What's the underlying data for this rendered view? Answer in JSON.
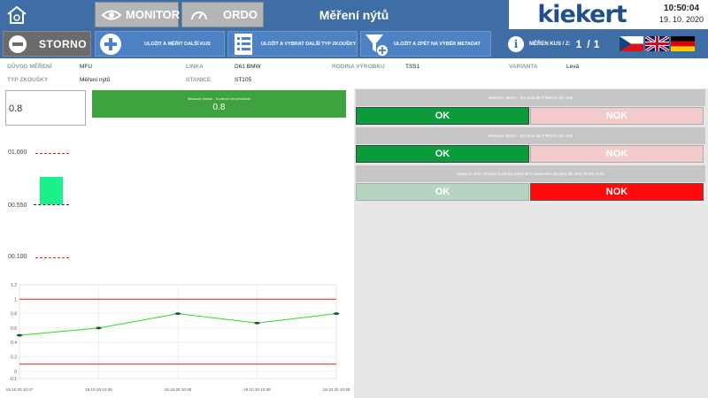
{
  "header": {
    "title": "Měření nýtů",
    "monitor_label": "MONITOR",
    "ordo_label": "ORDO",
    "brand": "kiekert",
    "time": "10:50:04",
    "date": "19. 10. 2020"
  },
  "toolbar": {
    "storno_label": "STORNO",
    "save_next_label": "ULOŽIT A MĚŘIT DALŠÍ KUS",
    "save_select_label": "ULOŽIT A VYBRAT DALŠÍ TYP ZKOUŠKY",
    "save_back_label": "ULOŽIT A ZPĚT NA VÝBĚR METADAT",
    "count_label": "MĚŘEN KUS / Z:",
    "count_current": "1",
    "count_separator": "/",
    "count_total": "1"
  },
  "meta": {
    "reason_key": "DŮVOD MĚŘENÍ",
    "reason_val": "MFU",
    "test_type_key": "TYP ZKOUŠKY",
    "test_type_val": "Měření nýtů",
    "line_key": "LINKA",
    "line_val": "D61 BMW",
    "station_key": "STANICE",
    "station_val": "ST105",
    "family_key": "RODINA VÝROBKU",
    "family_val": "TSS1",
    "variant_key": "VARIANTA",
    "variant_val": "Levá"
  },
  "measurement": {
    "input_value": "0.8",
    "result_caption": "Measure station - Kontrola nerozhodnutí",
    "result_value": "0.8"
  },
  "scale": {
    "upper": "01.000",
    "nominal": "00.550",
    "lower": "00.100"
  },
  "checks": [
    {
      "caption": "Measure station - Kontrola dle FRM-GL-QA-156",
      "ok_label": "OK",
      "nok_label": "NOK"
    },
    {
      "caption": "Measure station - Kontrola dle FRM-GL-QA-156",
      "ok_label": "OK",
      "nok_label": "NOK"
    },
    {
      "caption": "Measure 3D0: Vizuální kontrola správného nastavení nýtování dle 3D0, FLRG, 8.03",
      "ok_label": "OK",
      "nok_label": "NOK"
    }
  ],
  "colors": {
    "header_bg": "#3f6ea7",
    "ok_green": "#0c9b3c",
    "nok_red": "#ff0b0b",
    "bar_green": "#1cf08a"
  },
  "chart_data": {
    "type": "line",
    "x": [
      "19.10.20 10:47",
      "19.10.20 10:48",
      "19.10.20 10:48",
      "19.10.20 10:48",
      "19.10.20 10:48"
    ],
    "series": [
      {
        "values": [
          0.5,
          0.6,
          0.8,
          0.67,
          0.8
        ]
      }
    ],
    "limits": {
      "upper": 1.0,
      "lower": 0.1
    },
    "yticks": [
      1.2,
      1.0,
      0.8,
      0.6,
      0.4,
      0.2,
      0,
      -0.1
    ],
    "ylim": [
      -0.1,
      1.2
    ],
    "grid": true,
    "line_color": "#22e022",
    "limit_color": "#e02020"
  }
}
